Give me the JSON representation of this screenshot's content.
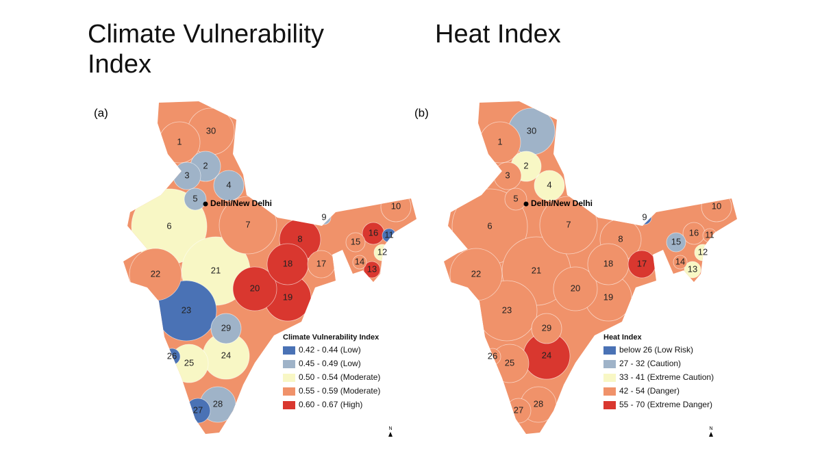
{
  "panels": [
    {
      "title": "Climate Vulnerability Index",
      "tag": "(a)",
      "city": "Delhi/New Delhi",
      "north": "N",
      "legend_title": "Climate Vulnerability Index",
      "legend": [
        {
          "label": "0.42 - 0.44 (Low)",
          "color": "#4a72b5"
        },
        {
          "label": "0.45 - 0.49 (Low)",
          "color": "#9fb3c8"
        },
        {
          "label": "0.50 - 0.54 (Moderate)",
          "color": "#f8f7c5"
        },
        {
          "label": "0.55 - 0.59 (Moderate)",
          "color": "#f0926a"
        },
        {
          "label": "0.60 - 0.67 (High)",
          "color": "#d9372f"
        }
      ],
      "regions": [
        {
          "label": "1",
          "color": "#f0926a"
        },
        {
          "label": "2",
          "color": "#9fb3c8"
        },
        {
          "label": "3",
          "color": "#9fb3c8"
        },
        {
          "label": "4",
          "color": "#9fb3c8"
        },
        {
          "label": "5",
          "color": "#9fb3c8"
        },
        {
          "label": "6",
          "color": "#f8f7c5"
        },
        {
          "label": "7",
          "color": "#f0926a"
        },
        {
          "label": "8",
          "color": "#d9372f"
        },
        {
          "label": "9",
          "color": "#9fb3c8"
        },
        {
          "label": "10",
          "color": "#f0926a"
        },
        {
          "label": "11",
          "color": "#4a72b5"
        },
        {
          "label": "12",
          "color": "#f8f7c5"
        },
        {
          "label": "13",
          "color": "#d9372f"
        },
        {
          "label": "14",
          "color": "#f0926a"
        },
        {
          "label": "15",
          "color": "#f0926a"
        },
        {
          "label": "16",
          "color": "#d9372f"
        },
        {
          "label": "17",
          "color": "#f0926a"
        },
        {
          "label": "18",
          "color": "#d9372f"
        },
        {
          "label": "19",
          "color": "#d9372f"
        },
        {
          "label": "20",
          "color": "#d9372f"
        },
        {
          "label": "21",
          "color": "#f8f7c5"
        },
        {
          "label": "22",
          "color": "#f0926a"
        },
        {
          "label": "23",
          "color": "#4a72b5"
        },
        {
          "label": "24",
          "color": "#f8f7c5"
        },
        {
          "label": "25",
          "color": "#f8f7c5"
        },
        {
          "label": "26",
          "color": "#4a72b5"
        },
        {
          "label": "27",
          "color": "#4a72b5"
        },
        {
          "label": "28",
          "color": "#9fb3c8"
        },
        {
          "label": "29",
          "color": "#9fb3c8"
        },
        {
          "label": "30",
          "color": "#f0926a"
        }
      ]
    },
    {
      "title": "Heat Index",
      "tag": "(b)",
      "city": "Delhi/New Delhi",
      "north": "N",
      "legend_title": "Heat Index",
      "legend": [
        {
          "label": "below 26 (Low Risk)",
          "color": "#4a72b5"
        },
        {
          "label": "27 - 32 (Caution)",
          "color": "#9fb3c8"
        },
        {
          "label": "33 - 41 (Extreme Caution)",
          "color": "#f8f7c5"
        },
        {
          "label": "42 - 54 (Danger)",
          "color": "#f0926a"
        },
        {
          "label": "55 - 70 (Extreme Danger)",
          "color": "#d9372f"
        }
      ],
      "regions": [
        {
          "label": "1",
          "color": "#f0926a"
        },
        {
          "label": "2",
          "color": "#f8f7c5"
        },
        {
          "label": "3",
          "color": "#f0926a"
        },
        {
          "label": "4",
          "color": "#f8f7c5"
        },
        {
          "label": "5",
          "color": "#f0926a"
        },
        {
          "label": "6",
          "color": "#f0926a"
        },
        {
          "label": "7",
          "color": "#f0926a"
        },
        {
          "label": "8",
          "color": "#f0926a"
        },
        {
          "label": "9",
          "color": "#4a72b5"
        },
        {
          "label": "10",
          "color": "#f0926a"
        },
        {
          "label": "11",
          "color": "#f0926a"
        },
        {
          "label": "12",
          "color": "#f8f7c5"
        },
        {
          "label": "13",
          "color": "#f8f7c5"
        },
        {
          "label": "14",
          "color": "#f0926a"
        },
        {
          "label": "15",
          "color": "#9fb3c8"
        },
        {
          "label": "16",
          "color": "#f0926a"
        },
        {
          "label": "17",
          "color": "#d9372f"
        },
        {
          "label": "18",
          "color": "#f0926a"
        },
        {
          "label": "19",
          "color": "#f0926a"
        },
        {
          "label": "20",
          "color": "#f0926a"
        },
        {
          "label": "21",
          "color": "#f0926a"
        },
        {
          "label": "22",
          "color": "#f0926a"
        },
        {
          "label": "23",
          "color": "#f0926a"
        },
        {
          "label": "24",
          "color": "#d9372f"
        },
        {
          "label": "25",
          "color": "#f0926a"
        },
        {
          "label": "26",
          "color": "#f0926a"
        },
        {
          "label": "27",
          "color": "#f0926a"
        },
        {
          "label": "28",
          "color": "#f0926a"
        },
        {
          "label": "29",
          "color": "#f0926a"
        },
        {
          "label": "30",
          "color": "#9fb3c8"
        }
      ]
    }
  ]
}
